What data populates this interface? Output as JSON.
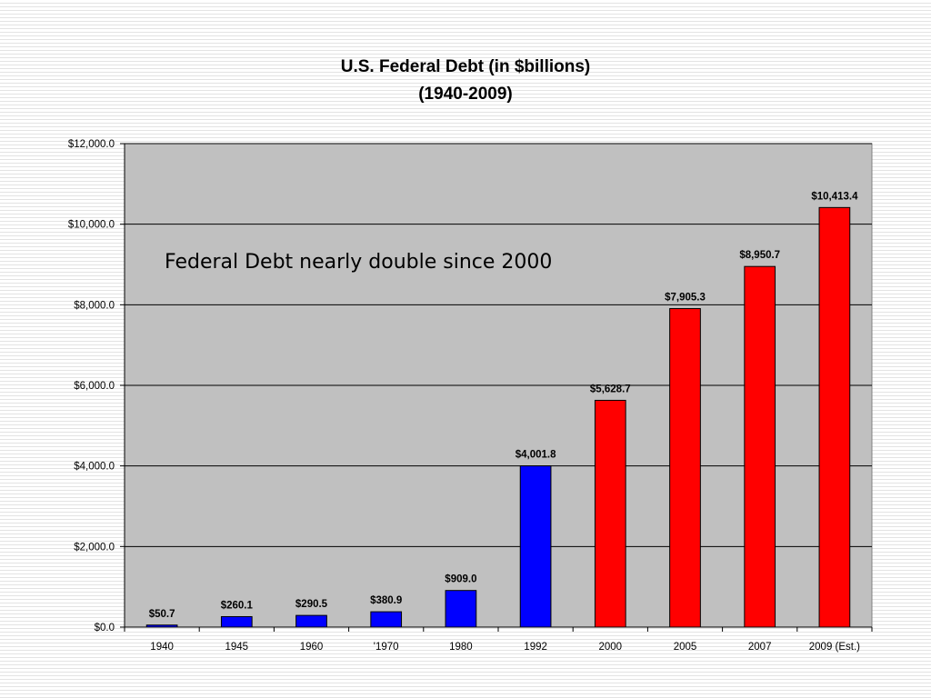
{
  "chart_data": {
    "type": "bar",
    "title": "U.S. Federal Debt (in $billions)",
    "subtitle": "(1940-2009)",
    "annotation": "Federal Debt nearly double since 2000",
    "xlabel": "",
    "ylabel": "",
    "ylim": [
      0,
      12000
    ],
    "y_ticks": [
      0,
      2000,
      4000,
      6000,
      8000,
      10000,
      12000
    ],
    "y_tick_labels": [
      "$0.0",
      "$2,000.0",
      "$4,000.0",
      "$6,000.0",
      "$8,000.0",
      "$10,000.0",
      "$12,000.0"
    ],
    "grid": true,
    "plot_background": "#c0c0c0",
    "categories": [
      "1940",
      "1945",
      "1960",
      "'1970",
      "1980",
      "1992",
      "2000",
      "2005",
      "2007",
      "2009 (Est.)"
    ],
    "values": [
      50.7,
      260.1,
      290.5,
      380.9,
      909.0,
      4001.8,
      5628.7,
      7905.3,
      8950.7,
      10413.4
    ],
    "value_labels": [
      "$50.7",
      "$260.1",
      "$290.5",
      "$380.9",
      "$909.0",
      "$4,001.8",
      "$5,628.7",
      "$7,905.3",
      "$8,950.7",
      "$10,413.4"
    ],
    "bar_colors": [
      "#0000ff",
      "#0000ff",
      "#0000ff",
      "#0000ff",
      "#0000ff",
      "#0000ff",
      "#ff0000",
      "#ff0000",
      "#ff0000",
      "#ff0000"
    ]
  }
}
